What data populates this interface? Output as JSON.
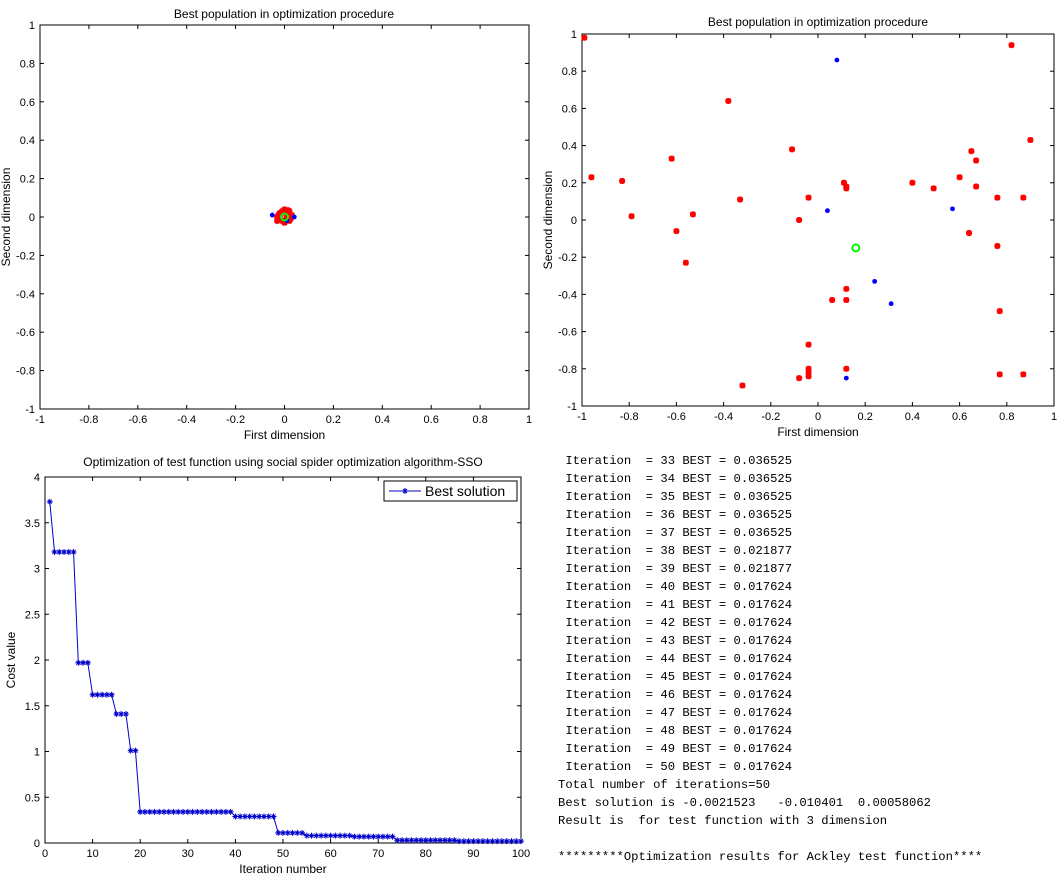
{
  "chart_data": [
    {
      "type": "scatter",
      "title": "Best population in optimization procedure",
      "xlabel": "First dimension",
      "ylabel": "Second dimension",
      "xlim": [
        -1,
        1
      ],
      "ylim": [
        -1,
        1
      ],
      "xticks": [
        "-1",
        "-0.8",
        "-0.6",
        "-0.4",
        "-0.2",
        "0",
        "0.2",
        "0.4",
        "0.6",
        "0.8",
        "1"
      ],
      "yticks": [
        "-1",
        "-0.8",
        "-0.6",
        "-0.4",
        "-0.2",
        "0",
        "0.2",
        "0.4",
        "0.6",
        "0.8",
        "1"
      ],
      "grid": false,
      "series": [
        {
          "marker": "star",
          "color": "#ff0000",
          "points": [
            [
              -0.03,
              0.0
            ],
            [
              -0.02,
              0.02
            ],
            [
              -0.01,
              0.03
            ],
            [
              0.0,
              0.04
            ],
            [
              0.01,
              0.02
            ],
            [
              0.02,
              0.03
            ],
            [
              0.03,
              0.01
            ],
            [
              0.02,
              -0.02
            ],
            [
              0.0,
              -0.03
            ],
            [
              -0.01,
              -0.02
            ],
            [
              -0.03,
              -0.02
            ],
            [
              -0.02,
              -0.01
            ],
            [
              0.01,
              0.0
            ],
            [
              -0.015,
              0.015
            ],
            [
              0.025,
              -0.01
            ],
            [
              0.005,
              -0.015
            ],
            [
              -0.025,
              0.01
            ],
            [
              0.015,
              0.035
            ]
          ]
        },
        {
          "marker": "dot",
          "color": "#0000ff",
          "points": [
            [
              -0.05,
              0.01
            ],
            [
              0.04,
              0.0
            ],
            [
              0.01,
              -0.02
            ]
          ]
        },
        {
          "marker": "circle",
          "color": "#00ff00",
          "points": [
            [
              0.0,
              0.0
            ]
          ]
        }
      ]
    },
    {
      "type": "scatter",
      "title": "Best population in optimization procedure",
      "xlabel": "First dimension",
      "ylabel": "Second dimension",
      "xlim": [
        -1,
        1
      ],
      "ylim": [
        -1,
        1
      ],
      "xticks": [
        "-1",
        "-0.8",
        "-0.6",
        "-0.4",
        "-0.2",
        "0",
        "0.2",
        "0.4",
        "0.6",
        "0.8",
        "1"
      ],
      "yticks": [
        "-1",
        "-0.8",
        "-0.6",
        "-0.4",
        "-0.2",
        "0",
        "0.2",
        "0.4",
        "0.6",
        "0.8",
        "1"
      ],
      "grid": false,
      "series": [
        {
          "marker": "star",
          "color": "#ff0000",
          "points": [
            [
              -0.99,
              0.98
            ],
            [
              -0.96,
              0.23
            ],
            [
              -0.83,
              0.21
            ],
            [
              -0.79,
              0.02
            ],
            [
              -0.62,
              0.33
            ],
            [
              -0.6,
              -0.06
            ],
            [
              -0.56,
              -0.23
            ],
            [
              -0.53,
              0.03
            ],
            [
              -0.38,
              0.64
            ],
            [
              -0.33,
              0.11
            ],
            [
              -0.32,
              -0.89
            ],
            [
              -0.11,
              0.38
            ],
            [
              -0.08,
              0.0
            ],
            [
              -0.08,
              -0.85
            ],
            [
              -0.04,
              0.12
            ],
            [
              -0.04,
              -0.67
            ],
            [
              -0.04,
              -0.8
            ],
            [
              -0.04,
              -0.82
            ],
            [
              -0.04,
              -0.84
            ],
            [
              0.06,
              -0.43
            ],
            [
              0.11,
              0.2
            ],
            [
              0.12,
              0.17
            ],
            [
              0.12,
              0.18
            ],
            [
              0.12,
              -0.37
            ],
            [
              0.12,
              -0.43
            ],
            [
              0.12,
              -0.8
            ],
            [
              0.4,
              0.2
            ],
            [
              0.49,
              0.17
            ],
            [
              0.6,
              0.23
            ],
            [
              0.64,
              -0.07
            ],
            [
              0.65,
              0.37
            ],
            [
              0.67,
              0.32
            ],
            [
              0.67,
              0.18
            ],
            [
              0.76,
              0.12
            ],
            [
              0.76,
              -0.14
            ],
            [
              0.77,
              -0.49
            ],
            [
              0.77,
              -0.83
            ],
            [
              0.82,
              0.94
            ],
            [
              0.87,
              0.12
            ],
            [
              0.87,
              -0.83
            ],
            [
              0.9,
              0.43
            ]
          ]
        },
        {
          "marker": "dot",
          "color": "#0000ff",
          "points": [
            [
              0.08,
              0.86
            ],
            [
              0.04,
              0.05
            ],
            [
              0.24,
              -0.33
            ],
            [
              0.31,
              -0.45
            ],
            [
              0.12,
              -0.85
            ],
            [
              0.57,
              0.06
            ]
          ]
        },
        {
          "marker": "circle",
          "color": "#00ff00",
          "points": [
            [
              0.16,
              -0.15
            ]
          ]
        }
      ]
    },
    {
      "type": "line",
      "title": "Optimization of test function using social spider optimization algorithm-SSO",
      "xlabel": "Iteration number",
      "ylabel": "Cost value",
      "xlim": [
        0,
        100
      ],
      "ylim": [
        0,
        4
      ],
      "xticks": [
        "0",
        "10",
        "20",
        "30",
        "40",
        "50",
        "60",
        "70",
        "80",
        "90",
        "100"
      ],
      "yticks": [
        "0",
        "0.5",
        "1",
        "1.5",
        "2",
        "2.5",
        "3",
        "3.5",
        "4"
      ],
      "grid": false,
      "legend": "top-right",
      "series": [
        {
          "name": "Best solution",
          "color": "#0000cc",
          "marker": "plus-x",
          "x": [
            1,
            2,
            3,
            4,
            5,
            6,
            7,
            8,
            9,
            10,
            11,
            12,
            13,
            14,
            15,
            16,
            17,
            18,
            19,
            20,
            21,
            22,
            23,
            24,
            25,
            26,
            27,
            28,
            29,
            30,
            31,
            32,
            33,
            34,
            35,
            36,
            37,
            38,
            39,
            40,
            41,
            42,
            43,
            44,
            45,
            46,
            47,
            48,
            49,
            50,
            51,
            52,
            53,
            54,
            55,
            56,
            57,
            58,
            59,
            60,
            61,
            62,
            63,
            64,
            65,
            66,
            67,
            68,
            69,
            70,
            71,
            72,
            73,
            74,
            75,
            76,
            77,
            78,
            79,
            80,
            81,
            82,
            83,
            84,
            85,
            86,
            87,
            88,
            89,
            90,
            91,
            92,
            93,
            94,
            95,
            96,
            97,
            98,
            99,
            100
          ],
          "values": [
            3.73,
            3.18,
            3.18,
            3.18,
            3.18,
            3.18,
            1.97,
            1.97,
            1.97,
            1.62,
            1.62,
            1.62,
            1.62,
            1.62,
            1.41,
            1.41,
            1.41,
            1.01,
            1.01,
            0.34,
            0.34,
            0.34,
            0.34,
            0.34,
            0.34,
            0.34,
            0.34,
            0.34,
            0.34,
            0.34,
            0.34,
            0.34,
            0.34,
            0.34,
            0.34,
            0.34,
            0.34,
            0.34,
            0.34,
            0.29,
            0.29,
            0.29,
            0.29,
            0.29,
            0.29,
            0.29,
            0.29,
            0.29,
            0.11,
            0.11,
            0.11,
            0.11,
            0.11,
            0.11,
            0.08,
            0.08,
            0.08,
            0.08,
            0.08,
            0.08,
            0.08,
            0.08,
            0.08,
            0.08,
            0.07,
            0.07,
            0.07,
            0.07,
            0.07,
            0.07,
            0.07,
            0.07,
            0.07,
            0.03,
            0.03,
            0.03,
            0.03,
            0.03,
            0.03,
            0.03,
            0.03,
            0.03,
            0.03,
            0.03,
            0.03,
            0.03,
            0.02,
            0.02,
            0.02,
            0.02,
            0.02,
            0.02,
            0.02,
            0.02,
            0.02,
            0.02,
            0.02,
            0.02,
            0.02,
            0.02
          ]
        }
      ]
    }
  ],
  "console": {
    "lines": [
      " Iteration  = 33 BEST = 0.036525",
      " Iteration  = 34 BEST = 0.036525",
      " Iteration  = 35 BEST = 0.036525",
      " Iteration  = 36 BEST = 0.036525",
      " Iteration  = 37 BEST = 0.036525",
      " Iteration  = 38 BEST = 0.021877",
      " Iteration  = 39 BEST = 0.021877",
      " Iteration  = 40 BEST = 0.017624",
      " Iteration  = 41 BEST = 0.017624",
      " Iteration  = 42 BEST = 0.017624",
      " Iteration  = 43 BEST = 0.017624",
      " Iteration  = 44 BEST = 0.017624",
      " Iteration  = 45 BEST = 0.017624",
      " Iteration  = 46 BEST = 0.017624",
      " Iteration  = 47 BEST = 0.017624",
      " Iteration  = 48 BEST = 0.017624",
      " Iteration  = 49 BEST = 0.017624",
      " Iteration  = 50 BEST = 0.017624",
      "Total number of iterations=50",
      "Best solution is -0.0021523   -0.010401  0.00058062",
      "Result is  for test function with 3 dimension",
      "",
      "*********Optimization results for Ackley test function****"
    ]
  }
}
